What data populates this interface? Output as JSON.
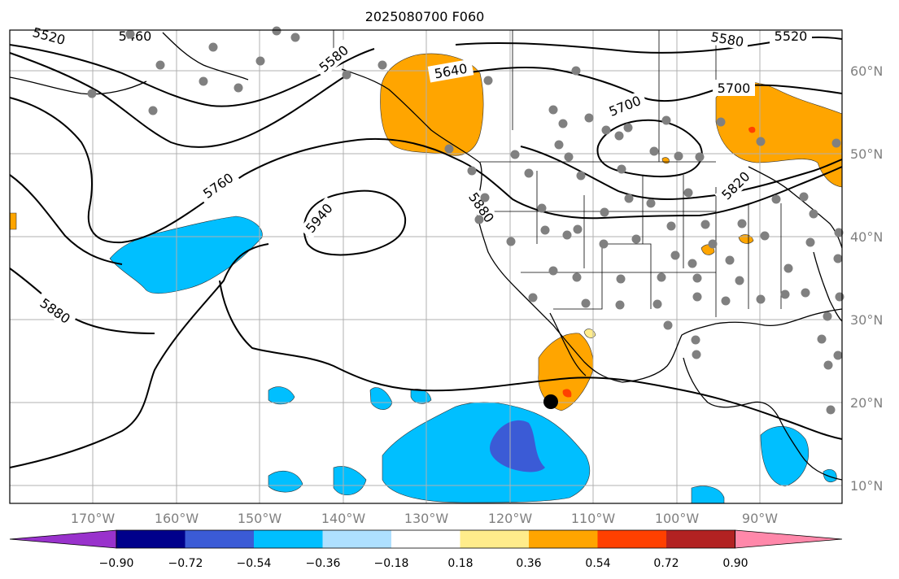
{
  "title": "2025080700 F060",
  "colors": {
    "grid": "#b0b0b0",
    "contour": "#000000",
    "land_points": "#808080",
    "pos_fill": "#ffa500",
    "pos_strong": "#ff4000",
    "neg_fill": "#00bfff",
    "neg_strong": "#3b5bd6"
  },
  "latitude_labels": [
    "10°N",
    "20°N",
    "30°N",
    "40°N",
    "50°N",
    "60°N"
  ],
  "longitude_labels": [
    "170°W",
    "160°W",
    "150°W",
    "140°W",
    "130°W",
    "120°W",
    "110°W",
    "100°W",
    "90°W"
  ],
  "contour_labels": [
    "5460",
    "5520",
    "5580",
    "5640",
    "5700",
    "5760",
    "5820",
    "5880",
    "5940",
    "5580",
    "5700",
    "5880",
    "5520"
  ],
  "colorbar": {
    "colors": [
      "#9932cc",
      "#00008b",
      "#3b5bd6",
      "#00bfff",
      "#aee0ff",
      "#ffffff",
      "#ffec8b",
      "#ffa500",
      "#ff4000",
      "#b22222",
      "#ff88aa"
    ],
    "tick_labels": [
      "−0.90",
      "−0.72",
      "−0.54",
      "−0.36",
      "−0.18",
      "0.18",
      "0.36",
      "0.54",
      "0.72",
      "0.90"
    ]
  }
}
